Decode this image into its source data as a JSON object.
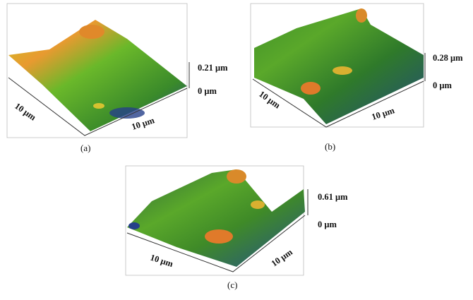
{
  "panels": [
    {
      "caption": "(a)",
      "x_label": "10 μm",
      "y_label": "10 μm",
      "z_max": "0.21 μm",
      "z_min": "0 μm"
    },
    {
      "caption": "(b)",
      "x_label": "10 μm",
      "y_label": "10 μm",
      "z_max": "0.28 μm",
      "z_min": "0 μm"
    },
    {
      "caption": "(c)",
      "x_label": "10 μm",
      "y_label": "10 μm",
      "z_max": "0.61 μm",
      "z_min": "0 μm"
    }
  ]
}
